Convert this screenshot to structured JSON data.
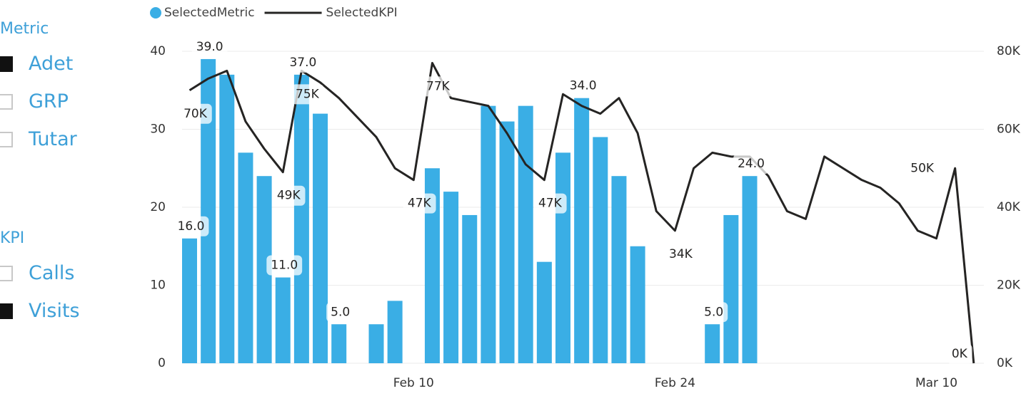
{
  "slicers": [
    {
      "title": "Metric",
      "items": [
        {
          "label": "Adet",
          "selected": true
        },
        {
          "label": "GRP",
          "selected": false
        },
        {
          "label": "Tutar",
          "selected": false
        }
      ]
    },
    {
      "title": "KPI",
      "items": [
        {
          "label": "Calls",
          "selected": false
        },
        {
          "label": "Visits",
          "selected": true
        }
      ]
    }
  ],
  "chart_data": {
    "type": "combo",
    "legend": "top-left",
    "grid": true,
    "categories": [
      null,
      null,
      null,
      null,
      null,
      null,
      null,
      null,
      null,
      null,
      null,
      null,
      "Feb 10",
      null,
      null,
      null,
      null,
      null,
      null,
      null,
      null,
      null,
      null,
      null,
      null,
      null,
      "Feb 24",
      null,
      null,
      null,
      null,
      null,
      null,
      null,
      null,
      null,
      null,
      null,
      null,
      null,
      "Mar 10",
      null,
      null
    ],
    "ylim": [
      0,
      40
    ],
    "yticks": [
      0,
      10,
      20,
      30,
      40
    ],
    "y2lim": [
      0,
      80000
    ],
    "y2ticks": [
      {
        "value": 0,
        "label": "0K"
      },
      {
        "value": 20000,
        "label": "20K"
      },
      {
        "value": 40000,
        "label": "40K"
      },
      {
        "value": 60000,
        "label": "60K"
      },
      {
        "value": 80000,
        "label": "80K"
      }
    ],
    "series": [
      {
        "name": "SelectedMetric",
        "type": "bar",
        "color": "#3aaee5",
        "values": [
          16,
          39,
          37,
          27,
          24,
          11,
          37,
          32,
          5,
          null,
          5,
          8,
          null,
          25,
          22,
          19,
          33,
          31,
          33,
          13,
          27,
          34,
          29,
          24,
          15,
          null,
          null,
          null,
          5,
          19,
          24,
          null,
          null,
          null,
          null,
          null,
          null,
          null,
          null,
          null,
          null,
          null,
          null
        ],
        "value_labels": [
          "16.0",
          "39.0",
          null,
          null,
          null,
          "11.0",
          "37.0",
          null,
          "5.0",
          null,
          null,
          null,
          null,
          null,
          null,
          null,
          null,
          null,
          null,
          null,
          null,
          "34.0",
          null,
          null,
          null,
          null,
          null,
          null,
          "5.0",
          null,
          "24.0",
          null,
          null,
          null,
          null,
          null,
          null,
          null,
          null,
          null,
          null,
          null,
          null
        ]
      },
      {
        "name": "SelectedKPI",
        "type": "line",
        "axis": "y2",
        "color": "#252423",
        "values": [
          70000,
          73000,
          75000,
          62000,
          55000,
          49000,
          75000,
          72000,
          68000,
          63000,
          58000,
          50000,
          47000,
          77000,
          68000,
          67000,
          66000,
          59000,
          51000,
          47000,
          69000,
          66000,
          64000,
          68000,
          59000,
          39000,
          34000,
          50000,
          54000,
          53000,
          53000,
          48000,
          39000,
          37000,
          53000,
          50000,
          47000,
          45000,
          41000,
          34000,
          32000,
          50000,
          0
        ],
        "value_labels": [
          "70K",
          null,
          null,
          null,
          null,
          "49K",
          "75K",
          null,
          null,
          null,
          null,
          null,
          "47K",
          "77K",
          null,
          null,
          null,
          null,
          null,
          "47K",
          null,
          null,
          null,
          null,
          null,
          null,
          "34K",
          null,
          null,
          null,
          null,
          null,
          null,
          null,
          null,
          null,
          null,
          null,
          null,
          null,
          null,
          "50K",
          "0K"
        ]
      }
    ]
  }
}
